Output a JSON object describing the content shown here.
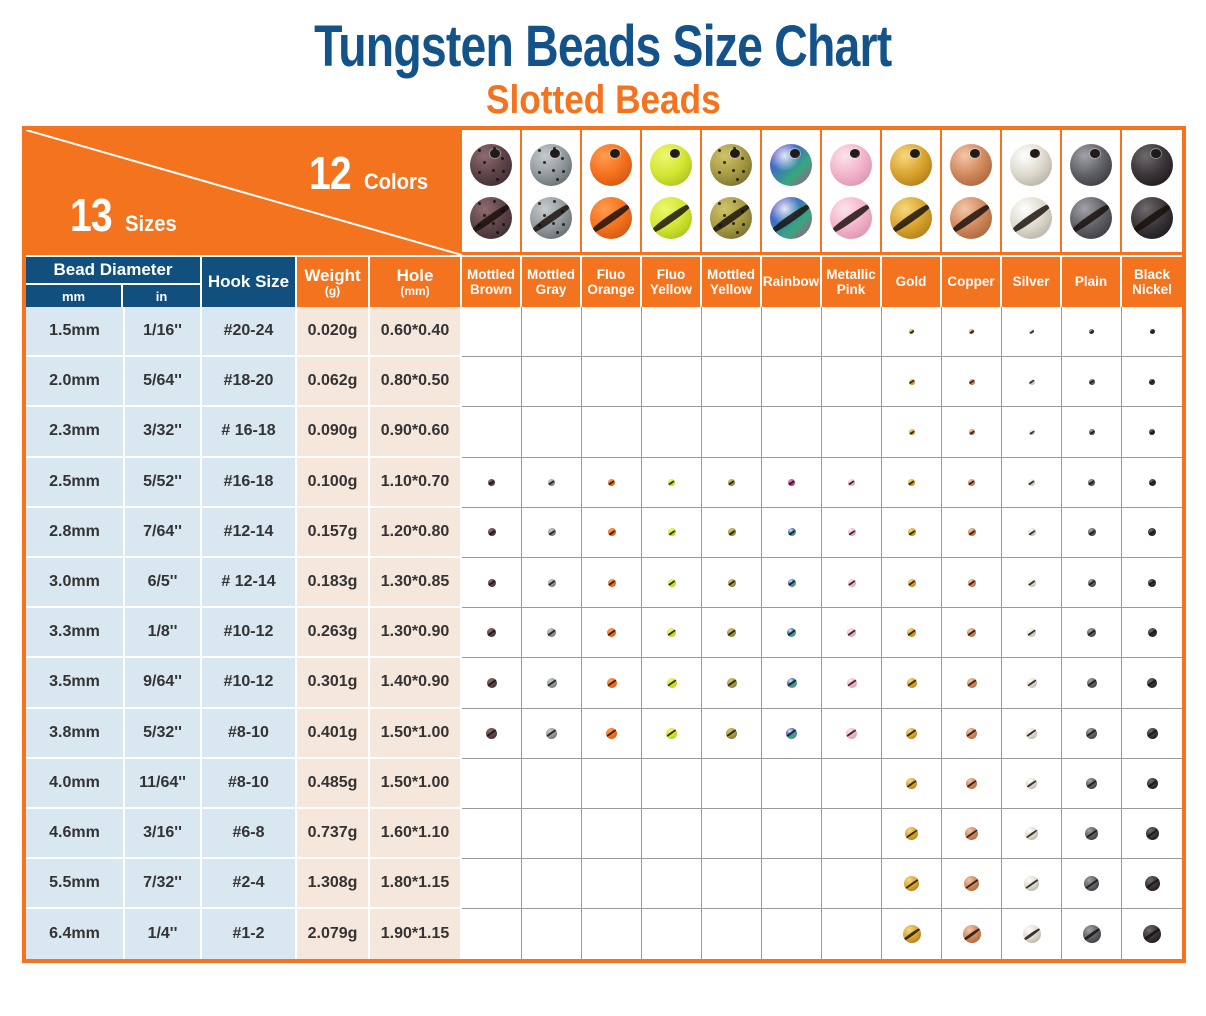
{
  "title": "Tungsten Beads Size Chart",
  "subtitle": "Slotted Beads",
  "corner": {
    "sizes_count": "13",
    "sizes_word": "Sizes",
    "colors_count": "12",
    "colors_word": "Colors"
  },
  "headers": {
    "bead_diameter": "Bead Diameter",
    "mm": "mm",
    "in": "in",
    "hook": "Hook Size",
    "weight": "Weight",
    "weight_unit": "(g)",
    "hole": "Hole",
    "hole_unit": "(mm)"
  },
  "colors": [
    {
      "name": "mottled-brown",
      "label": "Mottled Brown",
      "light": "#8d6b6e",
      "base": "#5e4449",
      "dark": "#33252b",
      "speckled": true
    },
    {
      "name": "mottled-gray",
      "label": "Mottled Gray",
      "light": "#c6cacc",
      "base": "#939a9e",
      "dark": "#565d61",
      "speckled": true
    },
    {
      "name": "fluo-orange",
      "label": "Fluo Orange",
      "light": "#ff9c4f",
      "base": "#f4711f",
      "dark": "#c2500e",
      "speckled": false
    },
    {
      "name": "fluo-yellow",
      "label": "Fluo Yellow",
      "light": "#eef76e",
      "base": "#d3e632",
      "dark": "#a0b51c",
      "speckled": false
    },
    {
      "name": "mottled-yellow",
      "label": "Mottled Yellow",
      "light": "#cfc36a",
      "base": "#a79a43",
      "dark": "#6b6128",
      "speckled": true
    },
    {
      "name": "rainbow",
      "label": "Rainbow",
      "light": "#e48fc4",
      "base": "#b8468e",
      "dark": "#6b2a56",
      "speckled": false,
      "rainbow": [
        "#7b4fb8",
        "#3e6ec4",
        "#36a87c",
        "#c4418f"
      ]
    },
    {
      "name": "metallic-pink",
      "label": "Metallic Pink",
      "light": "#fde3ec",
      "base": "#f2b4ca",
      "dark": "#d687a9",
      "speckled": false
    },
    {
      "name": "gold",
      "label": "Gold",
      "light": "#f6d87d",
      "base": "#d9a42d",
      "dark": "#a06f15",
      "speckled": false
    },
    {
      "name": "copper",
      "label": "Copper",
      "light": "#f2c7a9",
      "base": "#d0885c",
      "dark": "#9d5a33",
      "speckled": false
    },
    {
      "name": "silver",
      "label": "Silver",
      "light": "#ffffff",
      "base": "#ddd9cd",
      "dark": "#a9a496",
      "speckled": false
    },
    {
      "name": "plain",
      "label": "Plain",
      "light": "#a2a2a8",
      "base": "#606067",
      "dark": "#2e2e34",
      "speckled": false
    },
    {
      "name": "black-nickel",
      "label": "Black Nickel",
      "light": "#6e696c",
      "base": "#3a3538",
      "dark": "#121012",
      "speckled": false
    }
  ],
  "chart_data": {
    "type": "table",
    "title": "Tungsten Beads Size Chart - Slotted Beads",
    "columns": [
      "Bead Diameter mm",
      "Bead Diameter in",
      "Hook Size",
      "Weight (g)",
      "Hole (mm)",
      "Mottled Brown",
      "Mottled Gray",
      "Fluo Orange",
      "Fluo Yellow",
      "Mottled Yellow",
      "Rainbow",
      "Metallic Pink",
      "Gold",
      "Copper",
      "Silver",
      "Plain",
      "Black Nickel"
    ],
    "rows": [
      {
        "mm": "1.5mm",
        "in": "1/16''",
        "hook": "#20-24",
        "weight": "0.020g",
        "hole": "0.60*0.40",
        "available": [
          7,
          8,
          9,
          10,
          11
        ]
      },
      {
        "mm": "2.0mm",
        "in": "5/64''",
        "hook": "#18-20",
        "weight": "0.062g",
        "hole": "0.80*0.50",
        "available": [
          7,
          8,
          9,
          10,
          11
        ]
      },
      {
        "mm": "2.3mm",
        "in": "3/32''",
        "hook": "# 16-18",
        "weight": "0.090g",
        "hole": "0.90*0.60",
        "available": [
          7,
          8,
          9,
          10,
          11
        ]
      },
      {
        "mm": "2.5mm",
        "in": "5/52''",
        "hook": "#16-18",
        "weight": "0.100g",
        "hole": "1.10*0.70",
        "available": [
          0,
          1,
          2,
          3,
          4,
          5,
          6,
          7,
          8,
          9,
          10,
          11
        ]
      },
      {
        "mm": "2.8mm",
        "in": "7/64''",
        "hook": "#12-14",
        "weight": "0.157g",
        "hole": "1.20*0.80",
        "available": [
          0,
          1,
          2,
          3,
          4,
          5,
          6,
          7,
          8,
          9,
          10,
          11
        ]
      },
      {
        "mm": "3.0mm",
        "in": "6/5''",
        "hook": "# 12-14",
        "weight": "0.183g",
        "hole": "1.30*0.85",
        "available": [
          0,
          1,
          2,
          3,
          4,
          5,
          6,
          7,
          8,
          9,
          10,
          11
        ]
      },
      {
        "mm": "3.3mm",
        "in": "1/8''",
        "hook": "#10-12",
        "weight": "0.263g",
        "hole": "1.30*0.90",
        "available": [
          0,
          1,
          2,
          3,
          4,
          5,
          6,
          7,
          8,
          9,
          10,
          11
        ]
      },
      {
        "mm": "3.5mm",
        "in": "9/64''",
        "hook": "#10-12",
        "weight": "0.301g",
        "hole": "1.40*0.90",
        "available": [
          0,
          1,
          2,
          3,
          4,
          5,
          6,
          7,
          8,
          9,
          10,
          11
        ]
      },
      {
        "mm": "3.8mm",
        "in": "5/32''",
        "hook": "#8-10",
        "weight": "0.401g",
        "hole": "1.50*1.00",
        "available": [
          0,
          1,
          2,
          3,
          4,
          5,
          6,
          7,
          8,
          9,
          10,
          11
        ]
      },
      {
        "mm": "4.0mm",
        "in": "11/64''",
        "hook": "#8-10",
        "weight": "0.485g",
        "hole": "1.50*1.00",
        "available": [
          7,
          8,
          9,
          10,
          11
        ]
      },
      {
        "mm": "4.6mm",
        "in": "3/16''",
        "hook": "#6-8",
        "weight": "0.737g",
        "hole": "1.60*1.10",
        "available": [
          7,
          8,
          9,
          10,
          11
        ]
      },
      {
        "mm": "5.5mm",
        "in": "7/32''",
        "hook": "#2-4",
        "weight": "1.308g",
        "hole": "1.80*1.15",
        "available": [
          7,
          8,
          9,
          10,
          11
        ]
      },
      {
        "mm": "6.4mm",
        "in": "1/4''",
        "hook": "#1-2",
        "weight": "2.079g",
        "hole": "1.90*1.15",
        "available": [
          7,
          8,
          9,
          10,
          11
        ]
      }
    ]
  },
  "theme": {
    "orange": "#F4731E",
    "title_blue": "#14538A",
    "header_blue": "#11507E",
    "light_blue": "#D9E7F1",
    "light_pink": "#F6E7DC",
    "grid_gray": "#9B9B9B",
    "text": "#333333"
  }
}
